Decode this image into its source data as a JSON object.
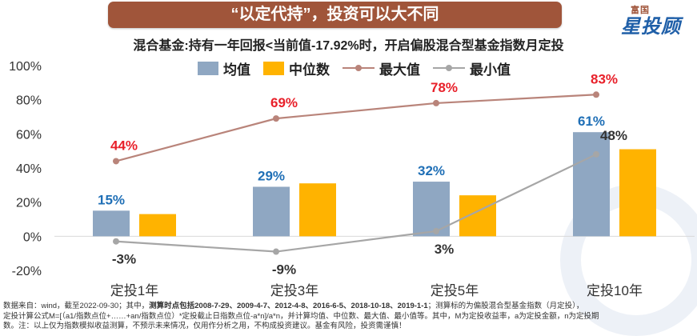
{
  "banner": {
    "title": "“以定代持”，投资可以大不同"
  },
  "logo": {
    "small": "富国",
    "big": "星投顾"
  },
  "chart_data": {
    "type": "bar",
    "title": "混合基金:持有一年回报<当前值-17.92%时，开启偏股混合型基金指数月定投",
    "categories": [
      "定投1年",
      "定投3年",
      "定投5年",
      "定投10年"
    ],
    "ylim": [
      -20,
      100
    ],
    "yticks": [
      -20,
      0,
      20,
      40,
      60,
      80,
      100
    ],
    "ytick_labels": [
      "-20%",
      "0%",
      "20%",
      "40%",
      "60%",
      "80%",
      "100%"
    ],
    "series": [
      {
        "name": "均值",
        "kind": "bar",
        "color": "#8fa7c2",
        "values": [
          15,
          29,
          32,
          61
        ],
        "labels": [
          "15%",
          "29%",
          "32%",
          "61%"
        ],
        "label_color": "#1f6fb6"
      },
      {
        "name": "中位数",
        "kind": "bar",
        "color": "#ffb300",
        "values": [
          13,
          31,
          24,
          51
        ],
        "labels": [
          "",
          "",
          "",
          ""
        ],
        "label_color": "#333333"
      },
      {
        "name": "最大值",
        "kind": "line",
        "color": "#b9847a",
        "values": [
          44,
          69,
          78,
          83
        ],
        "labels": [
          "44%",
          "69%",
          "78%",
          "83%"
        ],
        "label_color": "#e8202a"
      },
      {
        "name": "最小值",
        "kind": "line",
        "color": "#a6a6a6",
        "values": [
          -3,
          -9,
          3,
          48
        ],
        "labels": [
          "-3%",
          "-9%",
          "3%",
          "48%"
        ],
        "label_color": "#333333"
      }
    ]
  },
  "footnote": {
    "line1_pre": "数据来自：wind，截至2022-09-30；其中，",
    "line1_bold": "测算时点包括2008-7-29、2009-4-7、2012-4-8、2016-6-5、2018-10-18、2019-1-1",
    "line1_post": "；测算标的为偏股混合型基金指数（月定投），",
    "line2": "定投计算公式M=[（a1/指数点位+……+an/指数点位）*定投截止日指数点位-a*n]/a*n，并计算均值、中位数、最大值、最小值等。其中，M为定投收益率，a为定投金额，n为定投期",
    "line3": "数。注：以上仅为指数模拟收益测算，不预示未来情况，仅用作分析之用，不构成投资建议。基金有风险，投资需谨慎！"
  }
}
